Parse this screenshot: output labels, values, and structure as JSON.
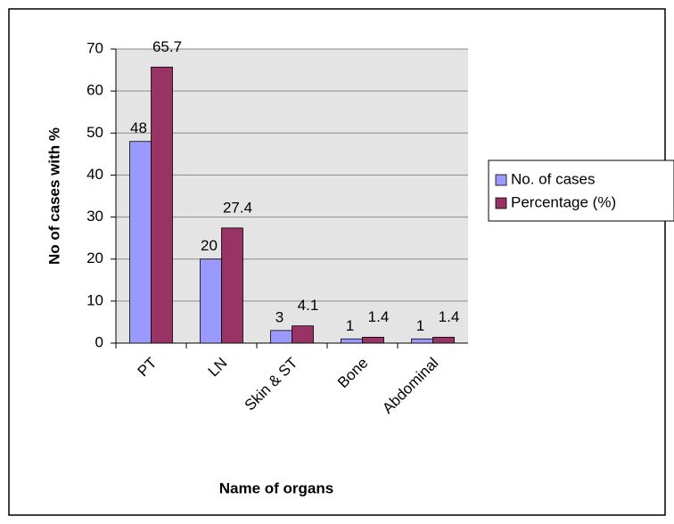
{
  "chart_data": {
    "type": "bar",
    "x_label": "Name of organs",
    "y_label": "No of cases with %",
    "categories": [
      "PT",
      "LN",
      "Skin & ST",
      "Bone",
      "Abdominal"
    ],
    "series": [
      {
        "name": "No. of cases",
        "color": "#9999ff",
        "values": [
          48,
          20,
          3,
          1,
          1
        ]
      },
      {
        "name": "Percentage (%)",
        "color": "#993366",
        "values": [
          65.7,
          27.4,
          4.1,
          1.4,
          1.4
        ]
      }
    ],
    "ylim": [
      0,
      70
    ],
    "yticks": [
      0,
      10,
      20,
      30,
      40,
      50,
      60,
      70
    ],
    "grid": true,
    "legend": "right"
  }
}
